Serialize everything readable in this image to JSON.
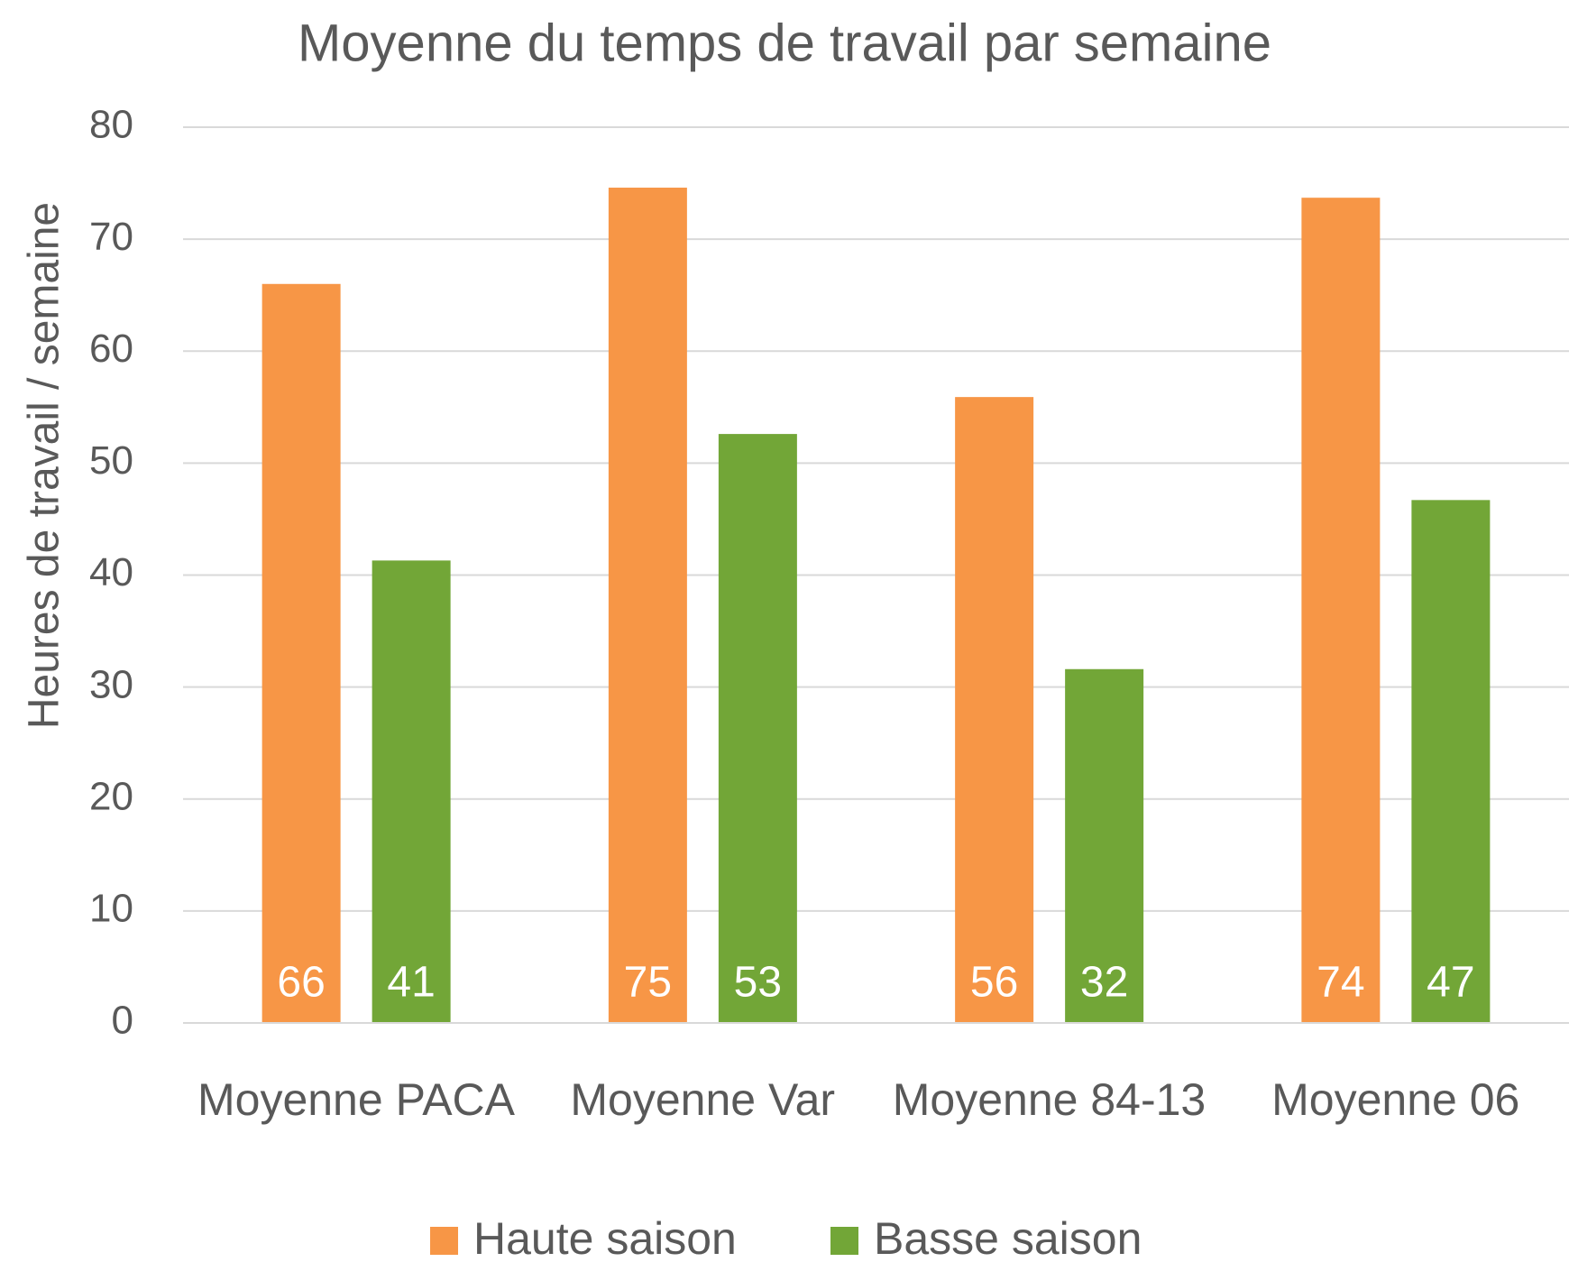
{
  "chart_data": {
    "type": "bar",
    "title": "Moyenne du temps de travail par semaine",
    "y_label": "Heures de travail / semaine",
    "categories": [
      "Moyenne PACA",
      "Moyenne Var",
      "Moyenne 84-13",
      "Moyenne 06"
    ],
    "series": [
      {
        "name": "Haute saison",
        "color": "#f79646",
        "values": [
          66,
          74.6,
          55.9,
          73.7
        ],
        "value_labels": [
          "66",
          "75",
          "56",
          "74"
        ]
      },
      {
        "name": "Basse saison",
        "color": "#72a637",
        "values": [
          41.3,
          52.6,
          31.6,
          46.7
        ],
        "value_labels": [
          "41",
          "53",
          "32",
          "47"
        ]
      }
    ],
    "ylim": [
      0,
      80
    ],
    "yticks": [
      0,
      10,
      20,
      30,
      40,
      50,
      60,
      70,
      80
    ],
    "grid": true,
    "legend": "bottom"
  }
}
